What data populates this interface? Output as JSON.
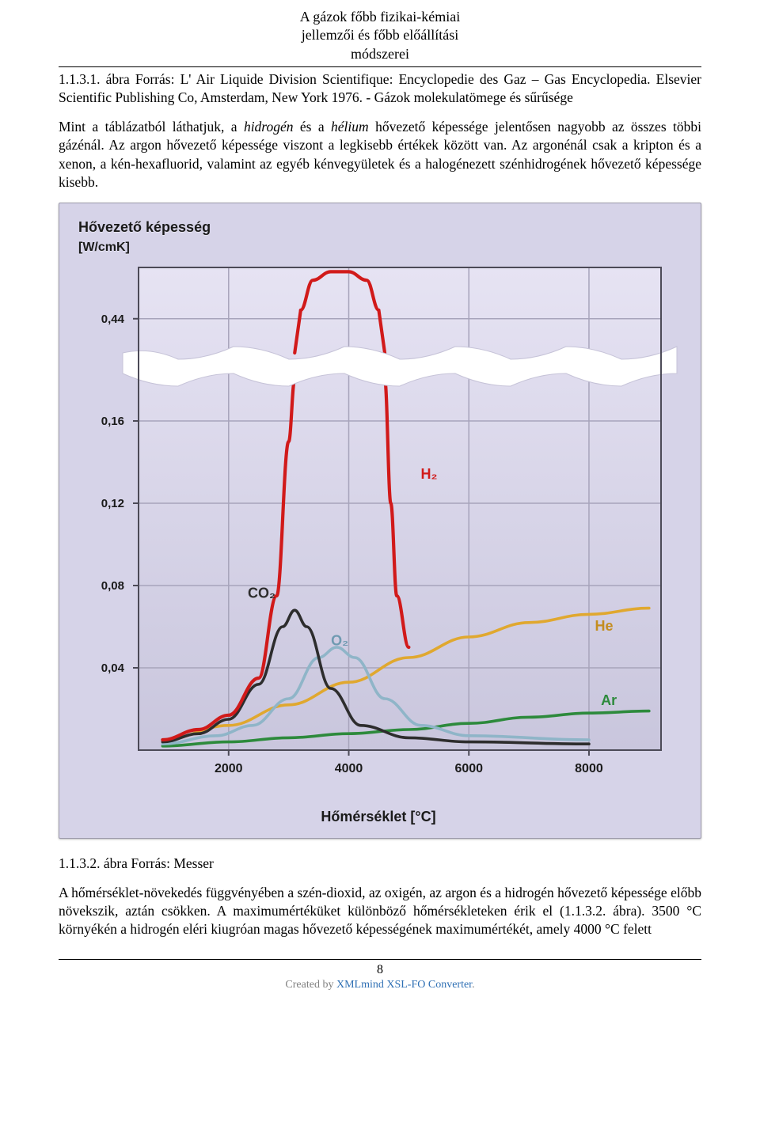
{
  "header": {
    "title_line1": "A gázok főbb fizikai-kémiai",
    "title_line2": "jellemzői és főbb előállítási",
    "title_line3": "módszerei"
  },
  "para1": "1.1.3.1. ábra Forrás: L' Air Liquide Division Scientifique: Encyclopedie des Gaz – Gas Encyclopedia. Elsevier Scientific Publishing Co, Amsterdam, New York 1976. - Gázok molekulatömege és sűrűsége",
  "para2_a": "Mint a táblázatból láthatjuk, a ",
  "para2_b": "hidrogén",
  "para2_c": " és a ",
  "para2_d": "hélium",
  "para2_e": " hővezető képessége jelentősen nagyobb az összes többi gázénál. Az argon hővezető képessége viszont a legkisebb értékek között van. Az argonénál csak a kripton és a xenon, a kén-hexafluorid, valamint az egyéb kénvegyületek és a halogénezett szénhidrogének hővezető képessége kisebb.",
  "caption2": "1.1.3.2. ábra Forrás: Messer",
  "para3": "A hőmérséklet-növekedés függvényében a szén-dioxid, az oxigén, az argon és a hidrogén hővezető képessége előbb növekszik, aztán csökken. A maximumértéküket különböző hőmérsékleteken érik el (1.1.3.2. ábra). 3500 °C környékén a hidrogén eléri kiugróan magas hővezető képességének maximumértékét, amely 4000 °C felett",
  "footer": {
    "page": "8",
    "credit_pre": "Created by ",
    "credit_brand": "XMLmind XSL-FO Converter",
    "credit_post": "."
  },
  "chart": {
    "type": "line",
    "title": "Hővezető képesség",
    "unit": "[W/cmK]",
    "x_title": "Hőmérséklet [°C]",
    "background": "#e6e3f3",
    "plot_bg_top": "#e6e3f3",
    "plot_bg_bottom": "#c9c6dd",
    "grid_color": "#a7a4bb",
    "axis_color": "#4c4a57",
    "break_fill": "#ffffff",
    "label_color": "#1a1a1a",
    "xmin": 500,
    "xmax": 9200,
    "ymin_lower": 0,
    "ymax_lower": 0.18,
    "ymin_upper": 0.4,
    "ymax_upper": 0.5,
    "y_ticks_lower": [
      "0,04",
      "0,08",
      "0,12",
      "0,16"
    ],
    "y_ticks_lower_vals": [
      0.04,
      0.08,
      0.12,
      0.16
    ],
    "y_ticks_upper": [
      "0,44"
    ],
    "y_ticks_upper_vals": [
      0.44
    ],
    "x_ticks": [
      "2000",
      "4000",
      "6000",
      "8000"
    ],
    "x_tick_vals": [
      2000,
      4000,
      6000,
      8000
    ],
    "series": {
      "H2": {
        "color": "#d11a1a",
        "width": 4.2,
        "label": "H₂",
        "label_color": "#d11a1a",
        "label_xy": [
          5200,
          0.132
        ],
        "pts_lower": [
          [
            900,
            0.005
          ],
          [
            1500,
            0.01
          ],
          [
            2000,
            0.017
          ],
          [
            2500,
            0.035
          ],
          [
            2800,
            0.075
          ],
          [
            3000,
            0.15
          ],
          [
            3100,
            0.18
          ]
        ],
        "pts_upper": [
          [
            3200,
            0.45
          ],
          [
            3400,
            0.485
          ],
          [
            3700,
            0.495
          ],
          [
            4000,
            0.495
          ],
          [
            4300,
            0.485
          ],
          [
            4500,
            0.45
          ]
        ],
        "pts_desc": [
          [
            4600,
            0.18
          ],
          [
            4700,
            0.12
          ],
          [
            4800,
            0.075
          ],
          [
            5000,
            0.05
          ]
        ]
      },
      "CO2": {
        "color": "#2d2d2d",
        "width": 3.6,
        "label": "CO₂",
        "label_color": "#2d2d2d",
        "label_xy": [
          2550,
          0.074
        ],
        "pts": [
          [
            900,
            0.004
          ],
          [
            1500,
            0.008
          ],
          [
            2000,
            0.015
          ],
          [
            2500,
            0.032
          ],
          [
            2900,
            0.06
          ],
          [
            3100,
            0.068
          ],
          [
            3300,
            0.06
          ],
          [
            3700,
            0.03
          ],
          [
            4200,
            0.012
          ],
          [
            5000,
            0.006
          ],
          [
            6000,
            0.004
          ],
          [
            8000,
            0.003
          ]
        ]
      },
      "O2": {
        "color": "#8fb5c8",
        "width": 3.6,
        "label": "O₂",
        "label_color": "#6f9ab1",
        "label_xy": [
          3850,
          0.051
        ],
        "pts": [
          [
            900,
            0.003
          ],
          [
            1800,
            0.007
          ],
          [
            2400,
            0.012
          ],
          [
            3000,
            0.025
          ],
          [
            3500,
            0.045
          ],
          [
            3800,
            0.05
          ],
          [
            4100,
            0.045
          ],
          [
            4600,
            0.025
          ],
          [
            5200,
            0.012
          ],
          [
            6000,
            0.007
          ],
          [
            8000,
            0.005
          ]
        ]
      },
      "He": {
        "color": "#e0a82f",
        "width": 3.6,
        "label": "He",
        "label_color": "#c48d1f",
        "label_xy": [
          8100,
          0.058
        ],
        "pts": [
          [
            900,
            0.005
          ],
          [
            2000,
            0.012
          ],
          [
            3000,
            0.022
          ],
          [
            4000,
            0.033
          ],
          [
            5000,
            0.045
          ],
          [
            6000,
            0.055
          ],
          [
            7000,
            0.062
          ],
          [
            8000,
            0.066
          ],
          [
            9000,
            0.069
          ]
        ]
      },
      "Ar": {
        "color": "#2d8a3c",
        "width": 3.6,
        "label": "Ar",
        "label_color": "#2d8a3c",
        "label_xy": [
          8200,
          0.022
        ],
        "pts": [
          [
            900,
            0.002
          ],
          [
            2000,
            0.004
          ],
          [
            3000,
            0.006
          ],
          [
            4000,
            0.008
          ],
          [
            5000,
            0.01
          ],
          [
            6000,
            0.013
          ],
          [
            7000,
            0.016
          ],
          [
            8000,
            0.018
          ],
          [
            9000,
            0.019
          ]
        ]
      }
    }
  }
}
